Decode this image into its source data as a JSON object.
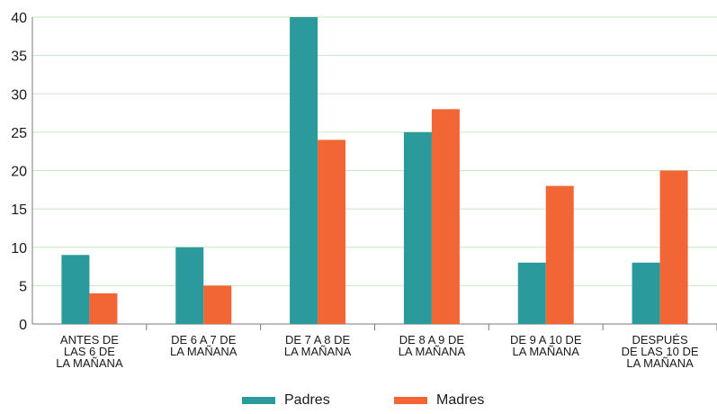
{
  "chart_data": {
    "type": "bar",
    "title": "",
    "xlabel": "",
    "ylabel": "",
    "ylim": [
      0,
      40
    ],
    "yticks": [
      0,
      5,
      10,
      15,
      20,
      25,
      30,
      35,
      40
    ],
    "grid": true,
    "legend_position": "bottom",
    "categories": [
      [
        "ANTES DE",
        "LAS 6 DE",
        "LA MAÑANA"
      ],
      [
        "DE 6 A 7 DE",
        "LA MAÑANA"
      ],
      [
        "DE 7 A 8 DE",
        "LA MAÑANA"
      ],
      [
        "DE 8 A 9 DE",
        "LA MAÑANA"
      ],
      [
        "DE 9 A 10 DE",
        "LA MAÑANA"
      ],
      [
        "DESPUÉS",
        "DE LAS 10 DE",
        "LA MAÑANA"
      ]
    ],
    "series": [
      {
        "name": "Padres",
        "color": "#2a9a9c",
        "values": [
          9,
          10,
          40,
          25,
          8,
          8
        ]
      },
      {
        "name": "Madres",
        "color": "#f26535",
        "values": [
          4,
          5,
          24,
          28,
          18,
          20
        ]
      }
    ]
  },
  "colors": {
    "grid": "#c9e6c5",
    "axis": "#7a7a7a"
  }
}
